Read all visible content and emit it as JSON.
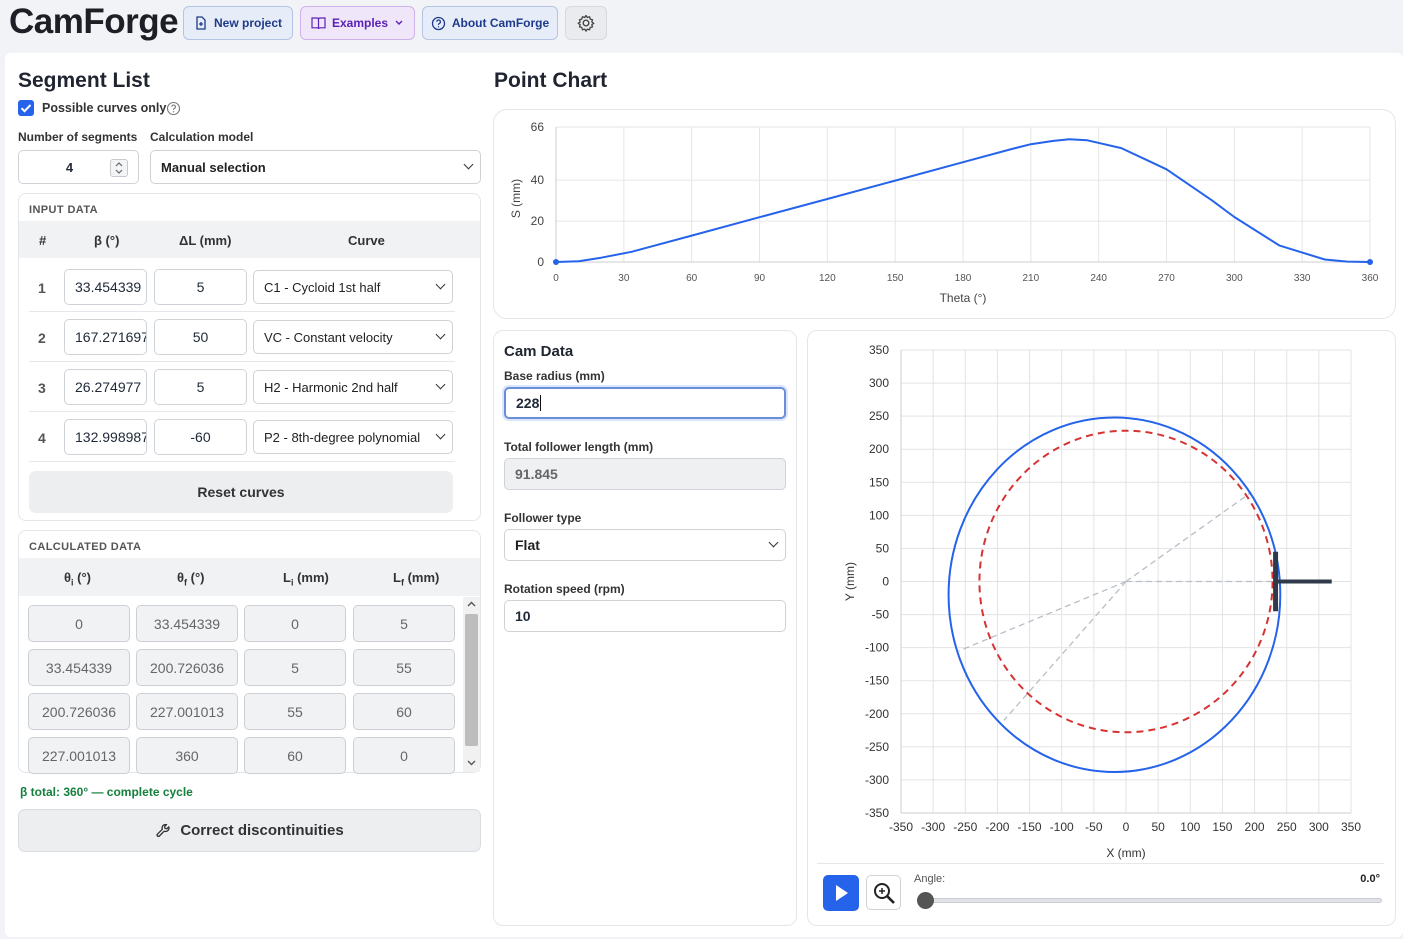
{
  "app": {
    "title": "CamForge"
  },
  "toolbar": {
    "new_project": "New project",
    "examples": "Examples",
    "about": "About CamForge"
  },
  "segment_list": {
    "title": "Segment List",
    "possible_curves_label": "Possible curves only",
    "possible_curves_checked": true,
    "num_segments_label": "Number of segments",
    "num_segments_value": "4",
    "calc_model_label": "Calculation model",
    "calc_model_value": "Manual selection"
  },
  "input_data": {
    "title": "INPUT DATA",
    "headers": {
      "num": "#",
      "beta": "β (°)",
      "dl": "ΔL (mm)",
      "curve": "Curve"
    },
    "rows": [
      {
        "n": "1",
        "beta": "33.454339",
        "dl": "5",
        "curve": "C1 - Cycloid 1st half"
      },
      {
        "n": "2",
        "beta": "167.271697",
        "dl": "50",
        "curve": "VC - Constant velocity"
      },
      {
        "n": "3",
        "beta": "26.274977",
        "dl": "5",
        "curve": "H2 - Harmonic 2nd half"
      },
      {
        "n": "4",
        "beta": "132.998987",
        "dl": "-60",
        "curve": "P2 - 8th-degree polynomial"
      }
    ],
    "reset_label": "Reset curves"
  },
  "calculated_data": {
    "title": "CALCULATED DATA",
    "headers": {
      "thi": "θ",
      "thi_sub": "i",
      "thi_unit": " (°)",
      "thf": "θ",
      "thf_sub": "f",
      "thf_unit": " (°)",
      "li": "L",
      "li_sub": "i",
      "li_unit": " (mm)",
      "lf": "L",
      "lf_sub": "f",
      "lf_unit": " (mm)"
    },
    "rows": [
      [
        "0",
        "33.454339",
        "0",
        "5"
      ],
      [
        "33.454339",
        "200.726036",
        "5",
        "55"
      ],
      [
        "200.726036",
        "227.001013",
        "55",
        "60"
      ],
      [
        "227.001013",
        "360",
        "60",
        "0"
      ]
    ],
    "total_text": "β total: 360° — complete cycle",
    "correct_label": "Correct discontinuities"
  },
  "point_chart": {
    "title": "Point Chart"
  },
  "chart_data": [
    {
      "type": "line",
      "xlabel": "Theta (°)",
      "ylabel": "S (mm)",
      "xlim": [
        0,
        360
      ],
      "ylim": [
        0,
        66
      ],
      "xticks": [
        "0",
        "30",
        "60",
        "90",
        "120",
        "150",
        "180",
        "210",
        "240",
        "270",
        "300",
        "330",
        "360"
      ],
      "yticks": [
        "0",
        "20",
        "40",
        "66"
      ],
      "grid": true,
      "x": [
        0,
        10,
        20,
        33.45,
        60,
        90,
        120,
        150,
        180,
        200.73,
        210,
        220,
        227,
        235,
        250,
        270,
        290,
        300,
        320,
        340,
        350,
        360
      ],
      "y": [
        0,
        0.4,
        2.1,
        5,
        12.9,
        21.9,
        30.8,
        39.8,
        48.8,
        55,
        57.6,
        59.2,
        60,
        59.5,
        55.7,
        45.3,
        30.2,
        22.0,
        8.0,
        1.2,
        0.2,
        0
      ]
    },
    {
      "type": "scatter",
      "xlabel": "X (mm)",
      "ylabel": "Y (mm)",
      "xlim": [
        -350,
        350
      ],
      "ylim": [
        -350,
        350
      ],
      "xticks": [
        "-350",
        "-300",
        "-250",
        "-200",
        "-150",
        "-100",
        "-50",
        "0",
        "50",
        "100",
        "150",
        "200",
        "250",
        "300",
        "350"
      ],
      "yticks": [
        "350",
        "300",
        "250",
        "200",
        "150",
        "100",
        "50",
        "0",
        "-50",
        "-100",
        "-150",
        "-200",
        "-250",
        "-300",
        "-350"
      ],
      "grid": true,
      "base_radius": 228,
      "series": []
    }
  ],
  "cam_data": {
    "title": "Cam Data",
    "base_radius_label": "Base radius (mm)",
    "base_radius_value": "228",
    "follower_length_label": "Total follower length (mm)",
    "follower_length_value": "91.845",
    "follower_type_label": "Follower type",
    "follower_type_value": "Flat",
    "rotation_label": "Rotation speed (rpm)",
    "rotation_value": "10"
  },
  "animation": {
    "angle_label": "Angle:",
    "angle_value": "0.0°",
    "angle_fraction": 0
  },
  "colors": {
    "accent": "#2563eb",
    "green": "#15803d",
    "red": "#d63333"
  }
}
